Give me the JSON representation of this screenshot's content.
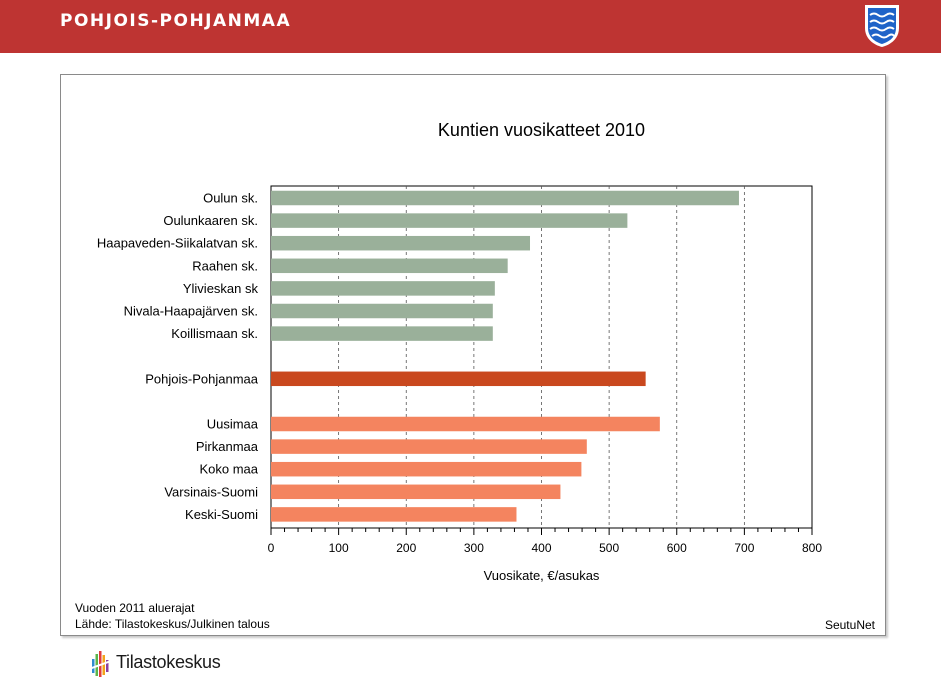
{
  "header": {
    "region_name": "POHJOIS-POHJANMAA",
    "crest_icon": "coat-of-arms-icon",
    "bar_color": "#be3432"
  },
  "chart_data": {
    "type": "bar",
    "orientation": "horizontal",
    "title": "Kuntien vuosikatteet 2010",
    "xlabel": "Vuosikate, €/asukas",
    "xlim": [
      0,
      800
    ],
    "xticks": [
      0,
      100,
      200,
      300,
      400,
      500,
      600,
      700,
      800
    ],
    "grid": "vertical dashed",
    "groups": [
      {
        "color": "#9ab09a",
        "categories": [
          "Oulun sk.",
          "Oulunkaaren sk.",
          "Haapaveden-Siikalatvan sk.",
          "Raahen sk.",
          "Ylivieskan sk",
          "Nivala-Haapajärven sk.",
          "Koillismaan sk."
        ],
        "values": [
          692,
          527,
          383,
          350,
          331,
          328,
          328
        ]
      },
      {
        "color": "#c9481e",
        "categories": [
          "Pohjois-Pohjanmaa"
        ],
        "values": [
          554
        ]
      },
      {
        "color": "#f4845f",
        "categories": [
          "Uusimaa",
          "Pirkanmaa",
          "Koko maa",
          "Varsinais-Suomi",
          "Keski-Suomi"
        ],
        "values": [
          575,
          467,
          459,
          428,
          363
        ]
      }
    ]
  },
  "footer": {
    "note1": "Vuoden 2011 aluerajat",
    "note2": "Lähde: Tilastokeskus/Julkinen talous",
    "brand": "SeutuNet"
  },
  "logo": {
    "text": "Tilastokeskus",
    "icon": "tilastokeskus-logo-icon"
  }
}
